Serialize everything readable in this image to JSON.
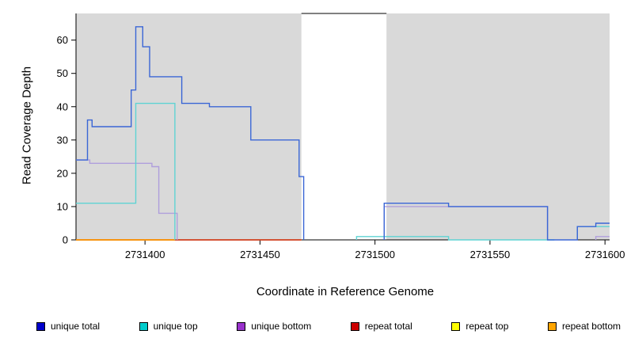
{
  "chart_data": {
    "type": "line",
    "title": "",
    "xlabel": "Coordinate in Reference Genome",
    "ylabel": "Read Coverage Depth",
    "xlim": [
      2731370,
      2731602
    ],
    "ylim": [
      0,
      68
    ],
    "xticks": [
      2731400,
      2731450,
      2731500,
      2731550,
      2731600
    ],
    "yticks": [
      0,
      10,
      20,
      30,
      40,
      50,
      60
    ],
    "grid": false,
    "legend_position": "bottom",
    "plot_bg": "#d9d9d9",
    "axis_color": "#000000",
    "highlight_region": {
      "x0": 2731468,
      "x1": 2731505,
      "color": "#ffffff"
    },
    "series": [
      {
        "name": "repeat top",
        "color": "#e8e800",
        "segments": [
          [
            [
              2731370,
              0
            ],
            [
              2731468,
              0
            ]
          ]
        ]
      },
      {
        "name": "repeat total",
        "color": "#cc2222",
        "segments": [
          [
            [
              2731370,
              0
            ],
            [
              2731468,
              0
            ]
          ]
        ]
      },
      {
        "name": "repeat bottom",
        "color": "#ff9900",
        "segments": [
          [
            [
              2731370,
              0
            ],
            [
              2731413,
              0
            ]
          ]
        ]
      },
      {
        "name": "unique bottom",
        "color": "#b09fdc",
        "segments": [
          [
            [
              2731370,
              24
            ],
            [
              2731376,
              24
            ],
            [
              2731376,
              23
            ],
            [
              2731403,
              23
            ],
            [
              2731403,
              22
            ],
            [
              2731406,
              22
            ],
            [
              2731406,
              8
            ],
            [
              2731414,
              8
            ],
            [
              2731414,
              0
            ]
          ],
          [
            [
              2731504,
              0
            ],
            [
              2731504,
              10
            ],
            [
              2731575,
              10
            ],
            [
              2731575,
              0
            ]
          ],
          [
            [
              2731596,
              0
            ],
            [
              2731596,
              1
            ],
            [
              2731602,
              1
            ]
          ]
        ]
      },
      {
        "name": "unique top",
        "color": "#5fd3d3",
        "segments": [
          [
            [
              2731370,
              11
            ],
            [
              2731396,
              11
            ],
            [
              2731396,
              41
            ],
            [
              2731413,
              41
            ],
            [
              2731413,
              0
            ]
          ],
          [
            [
              2731492,
              0
            ],
            [
              2731492,
              1
            ],
            [
              2731532,
              1
            ],
            [
              2731532,
              0
            ],
            [
              2731578,
              0
            ]
          ],
          [
            [
              2731588,
              0
            ],
            [
              2731588,
              4
            ],
            [
              2731602,
              4
            ]
          ]
        ]
      },
      {
        "name": "unique total",
        "color": "#3a66d6",
        "segments": [
          [
            [
              2731370,
              24
            ],
            [
              2731375,
              24
            ],
            [
              2731375,
              36
            ],
            [
              2731377,
              36
            ],
            [
              2731377,
              34
            ],
            [
              2731394,
              34
            ],
            [
              2731394,
              45
            ],
            [
              2731396,
              45
            ],
            [
              2731396,
              64
            ],
            [
              2731399,
              64
            ],
            [
              2731399,
              58
            ],
            [
              2731402,
              58
            ],
            [
              2731402,
              49
            ],
            [
              2731416,
              49
            ],
            [
              2731416,
              41
            ],
            [
              2731428,
              41
            ],
            [
              2731428,
              40
            ],
            [
              2731446,
              40
            ],
            [
              2731446,
              30
            ],
            [
              2731467,
              30
            ],
            [
              2731467,
              19
            ],
            [
              2731469,
              19
            ],
            [
              2731469,
              0
            ]
          ],
          [
            [
              2731504,
              0
            ],
            [
              2731504,
              11
            ],
            [
              2731532,
              11
            ],
            [
              2731532,
              10
            ],
            [
              2731575,
              10
            ],
            [
              2731575,
              0
            ],
            [
              2731588,
              0
            ],
            [
              2731588,
              4
            ],
            [
              2731596,
              4
            ],
            [
              2731596,
              5
            ],
            [
              2731602,
              5
            ]
          ]
        ]
      }
    ]
  },
  "legend": {
    "items": [
      {
        "label": "unique total",
        "color": "#0000cc"
      },
      {
        "label": "unique top",
        "color": "#00cccc"
      },
      {
        "label": "unique bottom",
        "color": "#9932cc"
      },
      {
        "label": "repeat total",
        "color": "#cc0000"
      },
      {
        "label": "repeat top",
        "color": "#ffff00"
      },
      {
        "label": "repeat bottom",
        "color": "#ffa500"
      }
    ]
  }
}
